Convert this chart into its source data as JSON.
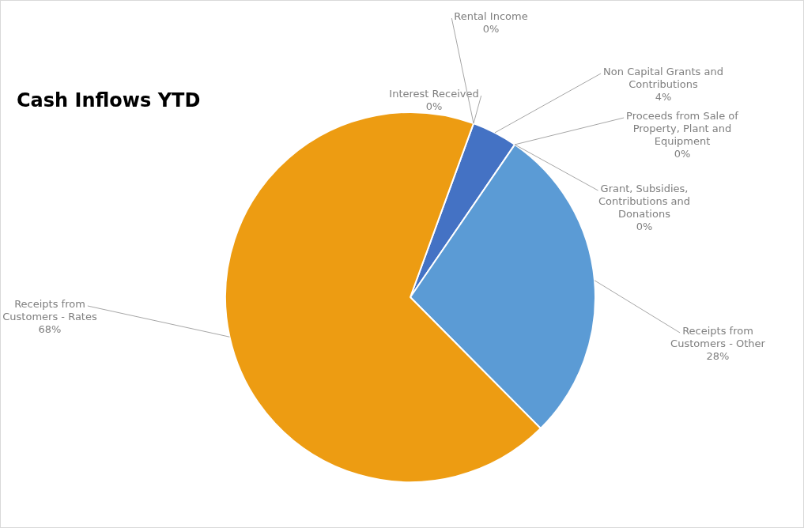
{
  "chart_data": {
    "type": "pie",
    "title": "Cash Inflows YTD",
    "categories": [
      "Interest Received",
      "Rental Income",
      "Non Capital Grants and Contributions",
      "Proceeds from Sale of Property, Plant and Equipment",
      "Grant, Subsidies, Contributions and Donations",
      "Receipts from Customers - Other",
      "Receipts from Customers - Rates"
    ],
    "values": [
      0,
      0,
      4,
      0,
      0,
      28,
      68
    ],
    "colors": [
      "#a5a5a5",
      "#ffc000",
      "#4472c4",
      "#70ad47",
      "#264478",
      "#5b9bd5",
      "#ed9c12"
    ],
    "value_labels": [
      "0%",
      "0%",
      "4%",
      "0%",
      "0%",
      "28%",
      "68%"
    ]
  }
}
